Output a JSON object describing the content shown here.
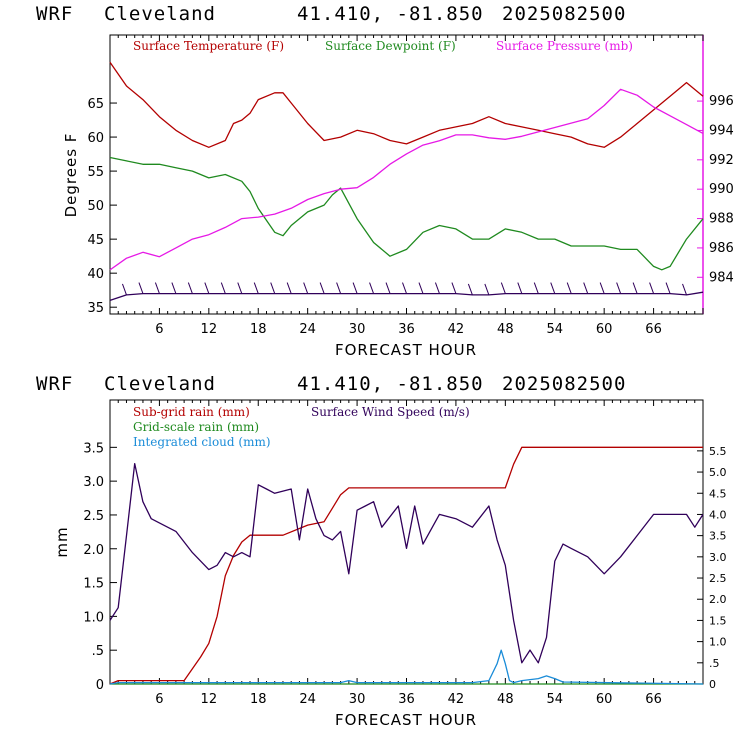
{
  "chart_data": [
    {
      "type": "line",
      "header": {
        "model": "WRF",
        "site": "Cleveland",
        "coords": "41.410, -81.850",
        "run": "2025082500"
      },
      "xlabel": "FORECAST HOUR",
      "ylabel": "Degrees F",
      "x_ticks": [
        "6",
        "12",
        "18",
        "24",
        "30",
        "36",
        "42",
        "48",
        "54",
        "60",
        "66"
      ],
      "xlim": [
        0,
        72
      ],
      "ylim": [
        34,
        75
      ],
      "y_ticks": [
        "35",
        "40",
        "45",
        "50",
        "55",
        "60",
        "65"
      ],
      "y2lim": [
        981.5,
        1000.5
      ],
      "y2_ticks": [
        "984",
        "986",
        "988",
        "990",
        "992",
        "994",
        "996"
      ],
      "series": [
        {
          "name": "Surface Temperature (F)",
          "color": "#b30000",
          "axis": "left",
          "x": [
            0,
            2,
            4,
            6,
            8,
            10,
            12,
            14,
            15,
            16,
            17,
            18,
            20,
            21,
            22,
            24,
            26,
            28,
            30,
            32,
            34,
            36,
            38,
            40,
            42,
            44,
            46,
            48,
            50,
            52,
            54,
            56,
            58,
            60,
            62,
            64,
            66,
            68,
            70,
            72
          ],
          "y": [
            71,
            67.5,
            65.5,
            63,
            61,
            59.5,
            58.5,
            59.5,
            62,
            62.5,
            63.5,
            65.5,
            66.5,
            66.5,
            65,
            62,
            59.5,
            60,
            61,
            60.5,
            59.5,
            59,
            60,
            61,
            61.5,
            62,
            63,
            62,
            61.5,
            61,
            60.5,
            60,
            59,
            58.5,
            60,
            62,
            64,
            66,
            68,
            66
          ]
        },
        {
          "name": "Surface Dewpoint (F)",
          "color": "#1f8a1f",
          "axis": "left",
          "x": [
            0,
            2,
            4,
            6,
            8,
            10,
            12,
            14,
            16,
            17,
            18,
            20,
            21,
            22,
            24,
            26,
            27,
            28,
            30,
            32,
            34,
            36,
            38,
            40,
            42,
            44,
            46,
            48,
            50,
            52,
            54,
            56,
            58,
            60,
            62,
            64,
            66,
            67,
            68,
            70,
            72
          ],
          "y": [
            57,
            56.5,
            56,
            56,
            55.5,
            55,
            54,
            54.5,
            53.5,
            52,
            49.5,
            46,
            45.5,
            47,
            49,
            50,
            51.5,
            52.5,
            48,
            44.5,
            42.5,
            43.5,
            46,
            47,
            46.5,
            45,
            45,
            46.5,
            46,
            45,
            45,
            44,
            44,
            44,
            43.5,
            43.5,
            41,
            40.5,
            41,
            45,
            48
          ]
        },
        {
          "name": "Surface Pressure (mb)",
          "color": "#e619e6",
          "axis": "right",
          "x": [
            0,
            2,
            4,
            6,
            8,
            10,
            12,
            14,
            16,
            18,
            20,
            22,
            24,
            26,
            28,
            30,
            32,
            34,
            36,
            38,
            40,
            42,
            44,
            46,
            48,
            50,
            52,
            54,
            56,
            58,
            60,
            62,
            64,
            66,
            68,
            70,
            72
          ],
          "y": [
            984.5,
            985.3,
            985.7,
            985.4,
            986,
            986.6,
            986.9,
            987.4,
            988,
            988.1,
            988.3,
            988.7,
            989.3,
            989.7,
            990,
            990.1,
            990.8,
            991.7,
            992.4,
            993,
            993.3,
            993.7,
            993.7,
            993.5,
            993.4,
            993.6,
            993.9,
            994.2,
            994.5,
            994.8,
            995.7,
            996.8,
            996.4,
            995.6,
            995,
            994.4,
            993.8
          ]
        },
        {
          "name": "Surface Wind Speed barbs",
          "color": "#30005a",
          "axis": "left",
          "x": [
            0,
            2,
            4,
            6,
            8,
            10,
            12,
            14,
            16,
            18,
            20,
            22,
            24,
            26,
            28,
            30,
            32,
            34,
            36,
            38,
            40,
            42,
            44,
            46,
            48,
            50,
            52,
            54,
            56,
            58,
            60,
            62,
            64,
            66,
            68,
            70,
            72
          ],
          "y": [
            36,
            36.8,
            37,
            37,
            37,
            37,
            37,
            37,
            37,
            37,
            37,
            37,
            37,
            37,
            37,
            37,
            37,
            37,
            37,
            37,
            37,
            37,
            36.8,
            36.8,
            37,
            37,
            37,
            37,
            37,
            37,
            37,
            37,
            37,
            37,
            37,
            36.8,
            37.2
          ]
        }
      ]
    },
    {
      "type": "line",
      "header": {
        "model": "WRF",
        "site": "Cleveland",
        "coords": "41.410, -81.850",
        "run": "2025082500"
      },
      "xlabel": "FORECAST HOUR",
      "ylabel": "mm",
      "x_ticks": [
        "6",
        "12",
        "18",
        "24",
        "30",
        "36",
        "42",
        "48",
        "54",
        "60",
        "66"
      ],
      "xlim": [
        0,
        72
      ],
      "ylim": [
        0,
        4.2
      ],
      "y_ticks": [
        "0",
        ".5",
        "1.0",
        "1.5",
        "2.0",
        "2.5",
        "3.0",
        "3.5"
      ],
      "y2lim": [
        0,
        6.7
      ],
      "y2_ticks": [
        "0",
        ".5",
        "1.0",
        "1.5",
        "2.0",
        "2.5",
        "3.0",
        "3.5",
        "4.0",
        "4.5",
        "5.0",
        "5.5"
      ],
      "series": [
        {
          "name": "Sub-grid rain (mm)",
          "color": "#b30000",
          "axis": "left",
          "x": [
            0,
            1,
            9,
            11,
            12,
            13,
            14,
            15,
            16,
            17,
            21,
            24,
            26,
            27,
            28,
            29,
            30,
            40,
            47,
            48,
            49,
            50,
            60,
            72
          ],
          "y": [
            0,
            0.05,
            0.05,
            0.4,
            0.6,
            1.0,
            1.6,
            1.9,
            2.1,
            2.2,
            2.2,
            2.35,
            2.4,
            2.6,
            2.8,
            2.9,
            2.9,
            2.9,
            2.9,
            2.9,
            3.25,
            3.5,
            3.5,
            3.5
          ]
        },
        {
          "name": "Grid-scale rain (mm)",
          "color": "#1f8a1f",
          "axis": "left",
          "x": [
            0,
            72
          ],
          "y": [
            0,
            0
          ]
        },
        {
          "name": "Integrated cloud (mm)",
          "color": "#1a8cd8",
          "axis": "left",
          "x": [
            0,
            1,
            28,
            29,
            30,
            44,
            46,
            47,
            47.5,
            48,
            48.5,
            49,
            50,
            52,
            53,
            54,
            55,
            72
          ],
          "y": [
            0,
            0.02,
            0.02,
            0.05,
            0.02,
            0.02,
            0.05,
            0.3,
            0.5,
            0.3,
            0.05,
            0.02,
            0.05,
            0.08,
            0.12,
            0.08,
            0.03,
            0
          ]
        },
        {
          "name": "Surface Wind Speed (m/s)",
          "color": "#30005a",
          "axis": "right",
          "x": [
            0,
            1,
            2,
            3,
            4,
            5,
            6,
            8,
            10,
            11,
            12,
            13,
            14,
            15,
            16,
            17,
            18,
            19,
            20,
            22,
            23,
            24,
            25,
            26,
            27,
            28,
            29,
            30,
            31,
            32,
            33,
            35,
            36,
            37,
            38,
            40,
            42,
            44,
            46,
            47,
            48,
            49,
            50,
            51,
            52,
            53,
            54,
            55,
            56,
            58,
            60,
            62,
            64,
            66,
            68,
            70,
            71,
            72
          ],
          "y": [
            1.5,
            1.8,
            3.5,
            5.2,
            4.3,
            3.9,
            3.8,
            3.6,
            3.1,
            2.9,
            2.7,
            2.8,
            3.1,
            3.0,
            3.1,
            3.0,
            4.7,
            4.6,
            4.5,
            4.6,
            3.4,
            4.6,
            3.9,
            3.5,
            3.4,
            3.6,
            2.6,
            4.1,
            4.2,
            4.3,
            3.7,
            4.2,
            3.2,
            4.2,
            3.3,
            4.0,
            3.9,
            3.7,
            4.2,
            3.4,
            2.8,
            1.5,
            0.5,
            0.8,
            0.5,
            1.1,
            2.9,
            3.3,
            3.2,
            3.0,
            2.6,
            3.0,
            3.5,
            4.0,
            4.0,
            4.0,
            3.7,
            4.0
          ]
        }
      ]
    }
  ]
}
